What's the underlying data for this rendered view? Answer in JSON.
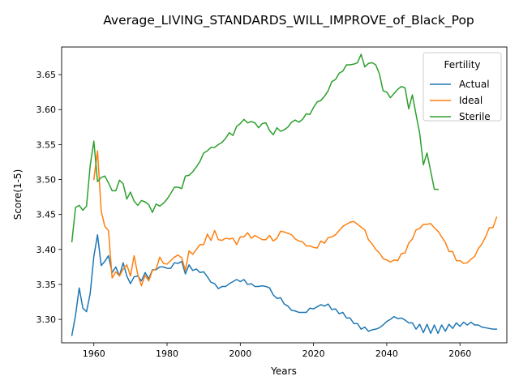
{
  "chart_data": {
    "type": "line",
    "title": "Average_LIVING_STANDARDS_WILL_IMPROVE_of_Black_Pop",
    "xlabel": "Years",
    "ylabel": "Score(1-5)",
    "xlim": [
      1951.2,
      2072.8
    ],
    "ylim": [
      3.2665,
      3.6895
    ],
    "xticks": [
      1960,
      1980,
      2000,
      2020,
      2040,
      2060
    ],
    "yticks": [
      3.3,
      3.35,
      3.4,
      3.45,
      3.5,
      3.55,
      3.6,
      3.65
    ],
    "ytick_labels": [
      "3.30",
      "3.35",
      "3.40",
      "3.45",
      "3.50",
      "3.55",
      "3.60",
      "3.65"
    ],
    "grid": false,
    "legend": {
      "title": "Fertility",
      "placement": "top-right"
    },
    "series": [
      {
        "name": "Actual",
        "color": "#1f77b4",
        "x": [
          1954,
          1955,
          1956,
          1957,
          1958,
          1959,
          1960,
          1961,
          1962,
          1963,
          1964,
          1965,
          1966,
          1967,
          1968,
          1969,
          1970,
          1971,
          1972,
          1973,
          1974,
          1975,
          1976,
          1977,
          1978,
          1979,
          1980,
          1981,
          1982,
          1983,
          1984,
          1985,
          1986,
          1987,
          1988,
          1989,
          1990,
          1991,
          1992,
          1993,
          1994,
          1995,
          1996,
          1997,
          1998,
          1999,
          2000,
          2001,
          2002,
          2003,
          2004,
          2005,
          2006,
          2007,
          2008,
          2009,
          2010,
          2011,
          2012,
          2013,
          2014,
          2015,
          2016,
          2017,
          2018,
          2019,
          2020,
          2021,
          2022,
          2023,
          2024,
          2025,
          2026,
          2027,
          2028,
          2029,
          2030,
          2031,
          2032,
          2033,
          2034,
          2035,
          2036,
          2037,
          2038,
          2039,
          2040,
          2041,
          2042,
          2043,
          2044,
          2045,
          2046,
          2047,
          2048,
          2049,
          2050,
          2051,
          2052,
          2053,
          2054,
          2055,
          2056,
          2057,
          2058,
          2059,
          2060,
          2061,
          2062,
          2063,
          2064,
          2065,
          2066,
          2067,
          2068,
          2069,
          2070
        ],
        "values": [
          3.277,
          3.306,
          3.345,
          3.316,
          3.311,
          3.337,
          3.39,
          3.421,
          3.377,
          3.383,
          3.391,
          3.367,
          3.375,
          3.362,
          3.381,
          3.362,
          3.351,
          3.361,
          3.362,
          3.355,
          3.367,
          3.358,
          3.371,
          3.371,
          3.375,
          3.375,
          3.373,
          3.373,
          3.381,
          3.38,
          3.383,
          3.365,
          3.378,
          3.37,
          3.372,
          3.367,
          3.368,
          3.361,
          3.353,
          3.351,
          3.344,
          3.347,
          3.347,
          3.351,
          3.354,
          3.357,
          3.354,
          3.357,
          3.35,
          3.351,
          3.347,
          3.347,
          3.348,
          3.347,
          3.345,
          3.335,
          3.33,
          3.331,
          3.322,
          3.319,
          3.313,
          3.312,
          3.31,
          3.31,
          3.31,
          3.316,
          3.315,
          3.318,
          3.321,
          3.319,
          3.322,
          3.314,
          3.315,
          3.308,
          3.31,
          3.302,
          3.302,
          3.294,
          3.294,
          3.286,
          3.289,
          3.283,
          3.285,
          3.286,
          3.288,
          3.292,
          3.297,
          3.3,
          3.304,
          3.301,
          3.302,
          3.299,
          3.295,
          3.295,
          3.286,
          3.293,
          3.281,
          3.293,
          3.28,
          3.292,
          3.28,
          3.292,
          3.283,
          3.293,
          3.287,
          3.295,
          3.29,
          3.296,
          3.292,
          3.296,
          3.292,
          3.292,
          3.289,
          3.288,
          3.287,
          3.286,
          3.286
        ]
      },
      {
        "name": "Ideal",
        "color": "#ff7f0e",
        "x": [
          1960,
          1961,
          1962,
          1963,
          1964,
          1965,
          1966,
          1967,
          1968,
          1969,
          1970,
          1971,
          1972,
          1973,
          1974,
          1975,
          1976,
          1977,
          1978,
          1979,
          1980,
          1981,
          1982,
          1983,
          1984,
          1985,
          1986,
          1987,
          1988,
          1989,
          1990,
          1991,
          1992,
          1993,
          1994,
          1995,
          1996,
          1997,
          1998,
          1999,
          2000,
          2001,
          2002,
          2003,
          2004,
          2005,
          2006,
          2007,
          2008,
          2009,
          2010,
          2011,
          2012,
          2013,
          2014,
          2015,
          2016,
          2017,
          2018,
          2019,
          2020,
          2021,
          2022,
          2023,
          2024,
          2025,
          2026,
          2027,
          2028,
          2029,
          2030,
          2031,
          2032,
          2033,
          2034,
          2035,
          2036,
          2037,
          2038,
          2039,
          2040,
          2041,
          2042,
          2043,
          2044,
          2045,
          2046,
          2047,
          2048,
          2049,
          2050,
          2051,
          2052,
          2053,
          2054,
          2055,
          2056,
          2057,
          2058,
          2059,
          2060,
          2061,
          2062,
          2063,
          2064,
          2065,
          2066,
          2067,
          2068,
          2069,
          2070
        ],
        "values": [
          3.5,
          3.541,
          3.455,
          3.433,
          3.427,
          3.359,
          3.368,
          3.362,
          3.372,
          3.378,
          3.362,
          3.391,
          3.364,
          3.348,
          3.363,
          3.355,
          3.37,
          3.372,
          3.389,
          3.38,
          3.379,
          3.384,
          3.389,
          3.392,
          3.388,
          3.37,
          3.398,
          3.393,
          3.4,
          3.407,
          3.407,
          3.422,
          3.413,
          3.427,
          3.414,
          3.413,
          3.416,
          3.415,
          3.416,
          3.407,
          3.418,
          3.418,
          3.424,
          3.416,
          3.42,
          3.417,
          3.414,
          3.414,
          3.42,
          3.412,
          3.416,
          3.426,
          3.425,
          3.423,
          3.421,
          3.415,
          3.412,
          3.411,
          3.405,
          3.405,
          3.403,
          3.402,
          3.412,
          3.409,
          3.417,
          3.418,
          3.421,
          3.427,
          3.433,
          3.436,
          3.439,
          3.44,
          3.436,
          3.432,
          3.428,
          3.414,
          3.408,
          3.4,
          3.395,
          3.387,
          3.385,
          3.382,
          3.385,
          3.384,
          3.394,
          3.395,
          3.409,
          3.415,
          3.428,
          3.43,
          3.436,
          3.436,
          3.437,
          3.431,
          3.426,
          3.418,
          3.41,
          3.397,
          3.397,
          3.384,
          3.384,
          3.38,
          3.381,
          3.386,
          3.39,
          3.401,
          3.408,
          3.418,
          3.431,
          3.431,
          3.446
        ]
      },
      {
        "name": "Sterile",
        "color": "#2ca02c",
        "x": [
          1954,
          1955,
          1956,
          1957,
          1958,
          1959,
          1960,
          1961,
          1962,
          1963,
          1964,
          1965,
          1966,
          1967,
          1968,
          1969,
          1970,
          1971,
          1972,
          1973,
          1974,
          1975,
          1976,
          1977,
          1978,
          1979,
          1980,
          1981,
          1982,
          1983,
          1984,
          1985,
          1986,
          1987,
          1988,
          1989,
          1990,
          1991,
          1992,
          1993,
          1994,
          1995,
          1996,
          1997,
          1998,
          1999,
          2000,
          2001,
          2002,
          2003,
          2004,
          2005,
          2006,
          2007,
          2008,
          2009,
          2010,
          2011,
          2012,
          2013,
          2014,
          2015,
          2016,
          2017,
          2018,
          2019,
          2020,
          2021,
          2022,
          2023,
          2024,
          2025,
          2026,
          2027,
          2028,
          2029,
          2030,
          2031,
          2032,
          2033,
          2034,
          2035,
          2036,
          2037,
          2038,
          2039,
          2040,
          2041,
          2042,
          2043,
          2044,
          2045,
          2046,
          2047,
          2048,
          2049,
          2050,
          2051,
          2052,
          2053,
          2054
        ],
        "values": [
          3.411,
          3.46,
          3.463,
          3.456,
          3.462,
          3.52,
          3.555,
          3.497,
          3.503,
          3.505,
          3.495,
          3.484,
          3.484,
          3.499,
          3.494,
          3.472,
          3.482,
          3.469,
          3.463,
          3.47,
          3.468,
          3.464,
          3.453,
          3.465,
          3.462,
          3.466,
          3.472,
          3.48,
          3.489,
          3.489,
          3.487,
          3.505,
          3.506,
          3.511,
          3.518,
          3.526,
          3.538,
          3.541,
          3.546,
          3.546,
          3.55,
          3.553,
          3.559,
          3.567,
          3.563,
          3.576,
          3.58,
          3.586,
          3.581,
          3.583,
          3.581,
          3.574,
          3.58,
          3.581,
          3.57,
          3.564,
          3.574,
          3.569,
          3.571,
          3.575,
          3.582,
          3.585,
          3.582,
          3.586,
          3.594,
          3.593,
          3.603,
          3.611,
          3.613,
          3.619,
          3.627,
          3.64,
          3.643,
          3.652,
          3.655,
          3.664,
          3.664,
          3.665,
          3.667,
          3.679,
          3.661,
          3.666,
          3.667,
          3.664,
          3.651,
          3.627,
          3.625,
          3.617,
          3.623,
          3.629,
          3.633,
          3.631,
          3.601,
          3.621,
          3.593,
          3.566,
          3.521,
          3.538,
          3.512,
          3.486,
          3.486
        ]
      }
    ]
  }
}
